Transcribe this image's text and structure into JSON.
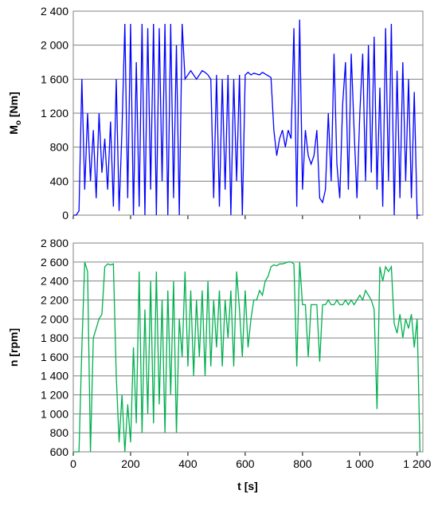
{
  "chart_data": [
    {
      "type": "line",
      "ylabel": "M",
      "ylabel_sub": "o",
      "ylabel_unit": " [Nm]",
      "xlim": [
        0,
        1220
      ],
      "ylim": [
        0,
        2400
      ],
      "xticks": [
        0,
        200,
        400,
        600,
        800,
        1000,
        1200
      ],
      "yticks": [
        0,
        400,
        800,
        {
          "value": 1200,
          "label": "1 200"
        },
        {
          "value": 1600,
          "label": "1 600"
        },
        {
          "value": 2000,
          "label": "2 000"
        },
        {
          "value": 2400,
          "label": "2 400"
        }
      ],
      "grid": true,
      "series": [
        {
          "color": "#0000ff",
          "x": [
            0,
            10,
            20,
            30,
            40,
            50,
            60,
            70,
            80,
            90,
            100,
            110,
            120,
            130,
            140,
            150,
            160,
            170,
            180,
            190,
            200,
            210,
            220,
            230,
            240,
            250,
            260,
            270,
            280,
            290,
            300,
            310,
            320,
            330,
            340,
            350,
            360,
            370,
            380,
            390,
            400,
            410,
            420,
            430,
            440,
            450,
            460,
            470,
            480,
            490,
            500,
            510,
            520,
            530,
            540,
            550,
            560,
            570,
            580,
            590,
            600,
            610,
            620,
            630,
            640,
            650,
            660,
            670,
            680,
            690,
            700,
            710,
            720,
            730,
            740,
            750,
            760,
            770,
            780,
            790,
            800,
            810,
            820,
            830,
            840,
            850,
            860,
            870,
            880,
            890,
            900,
            910,
            920,
            930,
            940,
            950,
            960,
            970,
            980,
            990,
            1000,
            1010,
            1020,
            1030,
            1040,
            1050,
            1060,
            1070,
            1080,
            1090,
            1100,
            1110,
            1120,
            1130,
            1140,
            1150,
            1160,
            1170,
            1180,
            1190,
            1200,
            1210
          ],
          "values": [
            0,
            0,
            50,
            1600,
            300,
            1200,
            400,
            1000,
            200,
            1200,
            500,
            900,
            300,
            1100,
            100,
            1600,
            50,
            1000,
            2250,
            200,
            2250,
            0,
            1800,
            100,
            2250,
            0,
            2200,
            300,
            2250,
            0,
            2200,
            400,
            2250,
            0,
            2250,
            200,
            2000,
            0,
            2250,
            1600,
            1650,
            1700,
            1650,
            1600,
            1650,
            1700,
            1680,
            1650,
            1600,
            200,
            1650,
            100,
            1600,
            300,
            1650,
            0,
            1600,
            400,
            1650,
            0,
            1650,
            1680,
            1650,
            1670,
            1660,
            1650,
            1680,
            1660,
            1640,
            1620,
            1000,
            700,
            900,
            1000,
            800,
            1000,
            900,
            2200,
            100,
            2300,
            300,
            1000,
            700,
            600,
            700,
            1000,
            200,
            150,
            300,
            1200,
            400,
            1900,
            600,
            200,
            1300,
            1800,
            300,
            1900,
            1000,
            200,
            1200,
            1900,
            400,
            2000,
            500,
            2100,
            300,
            1500,
            100,
            2200,
            400,
            2250,
            0,
            1700,
            200,
            1800,
            400,
            1600,
            200,
            1450,
            0,
            0
          ]
        }
      ]
    },
    {
      "type": "line",
      "ylabel": "n [rpm]",
      "xlabel": "t [s]",
      "xlim": [
        0,
        1220
      ],
      "ylim": [
        600,
        2800
      ],
      "xticks": [
        0,
        200,
        400,
        600,
        800,
        {
          "value": 1000,
          "label": "1 000"
        },
        {
          "value": 1200,
          "label": "1 200"
        }
      ],
      "yticks": [
        600,
        800,
        {
          "value": 1000,
          "label": "1 000"
        },
        {
          "value": 1200,
          "label": "1 200"
        },
        {
          "value": 1400,
          "label": "1 400"
        },
        {
          "value": 1600,
          "label": "1 600"
        },
        {
          "value": 1800,
          "label": "1 800"
        },
        {
          "value": 2000,
          "label": "2 000"
        },
        {
          "value": 2200,
          "label": "2 200"
        },
        {
          "value": 2400,
          "label": "2 400"
        },
        {
          "value": 2600,
          "label": "2 600"
        },
        {
          "value": 2800,
          "label": "2 800"
        }
      ],
      "grid": true,
      "series": [
        {
          "color": "#00b050",
          "x": [
            0,
            10,
            20,
            30,
            40,
            50,
            60,
            70,
            80,
            90,
            100,
            110,
            120,
            130,
            140,
            150,
            160,
            170,
            180,
            190,
            200,
            210,
            220,
            230,
            240,
            250,
            260,
            270,
            280,
            290,
            300,
            310,
            320,
            330,
            340,
            350,
            360,
            370,
            380,
            390,
            400,
            410,
            420,
            430,
            440,
            450,
            460,
            470,
            480,
            490,
            500,
            510,
            520,
            530,
            540,
            550,
            560,
            570,
            580,
            590,
            600,
            610,
            620,
            630,
            640,
            650,
            660,
            670,
            680,
            690,
            700,
            710,
            720,
            730,
            740,
            750,
            760,
            770,
            780,
            790,
            800,
            810,
            820,
            830,
            840,
            850,
            860,
            870,
            880,
            890,
            900,
            910,
            920,
            930,
            940,
            950,
            960,
            970,
            980,
            990,
            1000,
            1010,
            1020,
            1030,
            1040,
            1050,
            1060,
            1070,
            1080,
            1090,
            1100,
            1110,
            1120,
            1130,
            1140,
            1150,
            1160,
            1170,
            1180,
            1190,
            1200,
            1210
          ],
          "values": [
            600,
            600,
            600,
            1700,
            2600,
            2500,
            600,
            1800,
            1900,
            2000,
            2050,
            2550,
            2580,
            2570,
            2580,
            1400,
            700,
            1200,
            600,
            1100,
            700,
            1700,
            900,
            2500,
            800,
            2100,
            1000,
            2400,
            900,
            2500,
            1100,
            2200,
            800,
            2300,
            1200,
            2400,
            800,
            2000,
            1600,
            2500,
            1500,
            2300,
            1400,
            2200,
            1600,
            2300,
            1400,
            2400,
            1500,
            2200,
            1700,
            2300,
            1500,
            2200,
            1800,
            2300,
            1500,
            2500,
            2100,
            1600,
            2300,
            1700,
            2000,
            2200,
            2200,
            2300,
            2250,
            2400,
            2450,
            2550,
            2570,
            2560,
            2580,
            2580,
            2590,
            2600,
            2600,
            2580,
            1500,
            2600,
            2150,
            2150,
            1600,
            2150,
            2150,
            2150,
            1550,
            2150,
            2150,
            2200,
            2150,
            2150,
            2200,
            2150,
            2150,
            2200,
            2150,
            2200,
            2150,
            2200,
            2250,
            2200,
            2300,
            2250,
            2200,
            2100,
            1050,
            2550,
            2400,
            2550,
            2500,
            2550,
            1950,
            1850,
            2050,
            1800,
            2000,
            1900,
            2050,
            1700,
            2000,
            600
          ]
        }
      ]
    }
  ]
}
